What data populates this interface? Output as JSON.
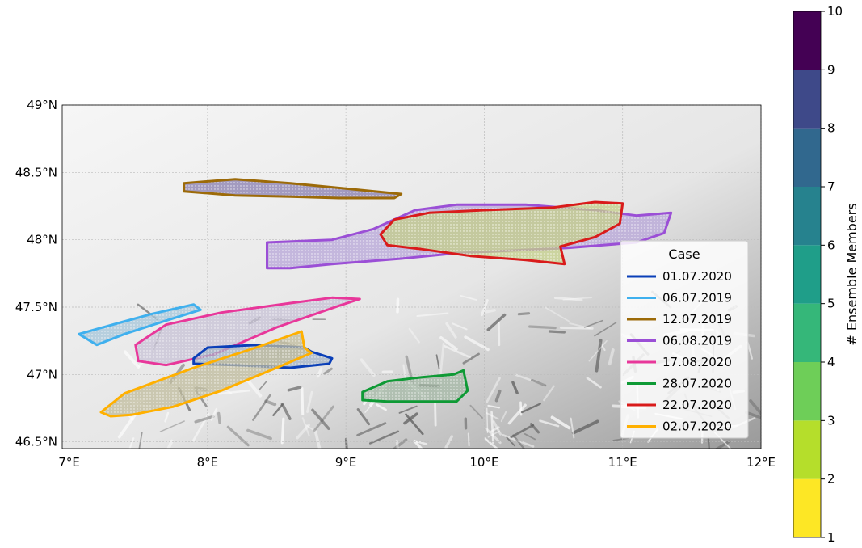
{
  "map": {
    "lon_range": [
      6.95,
      12.0
    ],
    "lat_range": [
      46.45,
      49.0
    ],
    "lon_ticks": [
      {
        "value": 7,
        "label": "7°E"
      },
      {
        "value": 8,
        "label": "8°E"
      },
      {
        "value": 9,
        "label": "9°E"
      },
      {
        "value": 10,
        "label": "10°E"
      },
      {
        "value": 11,
        "label": "11°E"
      },
      {
        "value": 12,
        "label": "12°E"
      }
    ],
    "lat_ticks": [
      {
        "value": 46.5,
        "label": "46.5°N"
      },
      {
        "value": 47.0,
        "label": "47°N"
      },
      {
        "value": 47.5,
        "label": "47.5°N"
      },
      {
        "value": 48.0,
        "label": "48°N"
      },
      {
        "value": 48.5,
        "label": "48.5°N"
      },
      {
        "value": 49.0,
        "label": "49°N"
      }
    ],
    "gridlines": true,
    "background": "grayscale terrain relief, darker over the Alps in the south-east"
  },
  "legend": {
    "title": "Case",
    "placement": "center-right",
    "entries": [
      {
        "label": "01.07.2020",
        "color": "#0a3fb8"
      },
      {
        "label": "06.07.2019",
        "color": "#3fb0ee"
      },
      {
        "label": "12.07.2019",
        "color": "#9c6a08"
      },
      {
        "label": "06.08.2019",
        "color": "#9b4fd6"
      },
      {
        "label": "17.08.2020",
        "color": "#e8379a"
      },
      {
        "label": "28.07.2020",
        "color": "#0e9a35"
      },
      {
        "label": "22.07.2020",
        "color": "#d91b1b"
      },
      {
        "label": "02.07.2020",
        "color": "#ffb000"
      }
    ]
  },
  "colorbar": {
    "label": "# Ensemble Members",
    "min": 1,
    "max": 10,
    "ticks": [
      {
        "value": 1,
        "label": "1"
      },
      {
        "value": 2,
        "label": "2"
      },
      {
        "value": 3,
        "label": "3"
      },
      {
        "value": 4,
        "label": "4"
      },
      {
        "value": 5,
        "label": "5"
      },
      {
        "value": 6,
        "label": "6"
      },
      {
        "value": 7,
        "label": "7"
      },
      {
        "value": 8,
        "label": "8"
      },
      {
        "value": 9,
        "label": "9"
      },
      {
        "value": 10,
        "label": "10"
      }
    ],
    "colors": [
      "#fde725",
      "#b5de2b",
      "#6ece58",
      "#35b779",
      "#1f9e89",
      "#26828e",
      "#31688e",
      "#3e4989",
      "#482878",
      "#440154"
    ]
  },
  "cases": [
    {
      "label": "12.07.2019",
      "color": "#9c6a08",
      "fill": "#8a7fb0",
      "outline": [
        [
          7.83,
          48.42
        ],
        [
          8.2,
          48.45
        ],
        [
          8.6,
          48.42
        ],
        [
          9.0,
          48.38
        ],
        [
          9.4,
          48.34
        ],
        [
          9.35,
          48.31
        ],
        [
          8.95,
          48.31
        ],
        [
          8.6,
          48.32
        ],
        [
          8.2,
          48.33
        ],
        [
          7.83,
          48.36
        ]
      ]
    },
    {
      "label": "06.08.2019",
      "color": "#9b4fd6",
      "fill": "#b7a6d8",
      "outline": [
        [
          8.43,
          47.79
        ],
        [
          8.43,
          47.98
        ],
        [
          8.9,
          48.0
        ],
        [
          9.2,
          48.08
        ],
        [
          9.5,
          48.22
        ],
        [
          9.8,
          48.26
        ],
        [
          10.3,
          48.26
        ],
        [
          10.8,
          48.22
        ],
        [
          11.1,
          48.18
        ],
        [
          11.35,
          48.2
        ],
        [
          11.3,
          48.05
        ],
        [
          11.1,
          47.98
        ],
        [
          10.6,
          47.94
        ],
        [
          10.2,
          47.92
        ],
        [
          9.8,
          47.9
        ],
        [
          9.4,
          47.86
        ],
        [
          8.9,
          47.82
        ],
        [
          8.6,
          47.79
        ]
      ]
    },
    {
      "label": "22.07.2020",
      "color": "#d91b1b",
      "fill": "#c4cf8a",
      "outline": [
        [
          9.25,
          48.04
        ],
        [
          9.35,
          48.15
        ],
        [
          9.6,
          48.2
        ],
        [
          10.0,
          48.22
        ],
        [
          10.5,
          48.24
        ],
        [
          10.8,
          48.28
        ],
        [
          11.0,
          48.27
        ],
        [
          10.98,
          48.12
        ],
        [
          10.8,
          48.02
        ],
        [
          10.55,
          47.95
        ],
        [
          10.58,
          47.82
        ],
        [
          10.3,
          47.85
        ],
        [
          9.9,
          47.88
        ],
        [
          9.55,
          47.93
        ],
        [
          9.3,
          47.96
        ]
      ]
    },
    {
      "label": "06.07.2019",
      "color": "#3fb0ee",
      "fill": "#a6c6da",
      "outline": [
        [
          7.07,
          47.3
        ],
        [
          7.35,
          47.38
        ],
        [
          7.6,
          47.45
        ],
        [
          7.9,
          47.52
        ],
        [
          7.95,
          47.48
        ],
        [
          7.7,
          47.4
        ],
        [
          7.4,
          47.3
        ],
        [
          7.2,
          47.22
        ]
      ]
    },
    {
      "label": "17.08.2020",
      "color": "#e8379a",
      "fill": "#c7c1d6",
      "outline": [
        [
          7.48,
          47.22
        ],
        [
          7.7,
          47.37
        ],
        [
          8.1,
          47.46
        ],
        [
          8.6,
          47.53
        ],
        [
          8.9,
          47.57
        ],
        [
          9.1,
          47.56
        ],
        [
          8.95,
          47.51
        ],
        [
          8.5,
          47.35
        ],
        [
          8.05,
          47.15
        ],
        [
          7.7,
          47.07
        ],
        [
          7.5,
          47.1
        ]
      ]
    },
    {
      "label": "01.07.2020",
      "color": "#0a3fb8",
      "fill": "#a3b3c6",
      "outline": [
        [
          7.9,
          47.12
        ],
        [
          8.0,
          47.2
        ],
        [
          8.35,
          47.22
        ],
        [
          8.7,
          47.2
        ],
        [
          8.75,
          47.17
        ],
        [
          8.9,
          47.12
        ],
        [
          8.88,
          47.08
        ],
        [
          8.6,
          47.05
        ],
        [
          8.2,
          47.07
        ],
        [
          7.9,
          47.08
        ]
      ]
    },
    {
      "label": "28.07.2020",
      "color": "#0e9a35",
      "fill": "#a4b8a6",
      "outline": [
        [
          9.12,
          46.87
        ],
        [
          9.3,
          46.95
        ],
        [
          9.55,
          46.98
        ],
        [
          9.78,
          47.0
        ],
        [
          9.85,
          47.03
        ],
        [
          9.88,
          46.88
        ],
        [
          9.8,
          46.8
        ],
        [
          9.6,
          46.8
        ],
        [
          9.3,
          46.8
        ],
        [
          9.12,
          46.81
        ]
      ]
    },
    {
      "label": "02.07.2020",
      "color": "#ffb000",
      "fill": "#c0bc9e",
      "outline": [
        [
          7.23,
          46.72
        ],
        [
          7.4,
          46.86
        ],
        [
          7.9,
          47.05
        ],
        [
          8.35,
          47.2
        ],
        [
          8.68,
          47.32
        ],
        [
          8.7,
          47.2
        ],
        [
          8.75,
          47.16
        ],
        [
          8.5,
          47.05
        ],
        [
          8.1,
          46.88
        ],
        [
          7.75,
          46.76
        ],
        [
          7.45,
          46.7
        ],
        [
          7.3,
          46.69
        ]
      ]
    }
  ]
}
